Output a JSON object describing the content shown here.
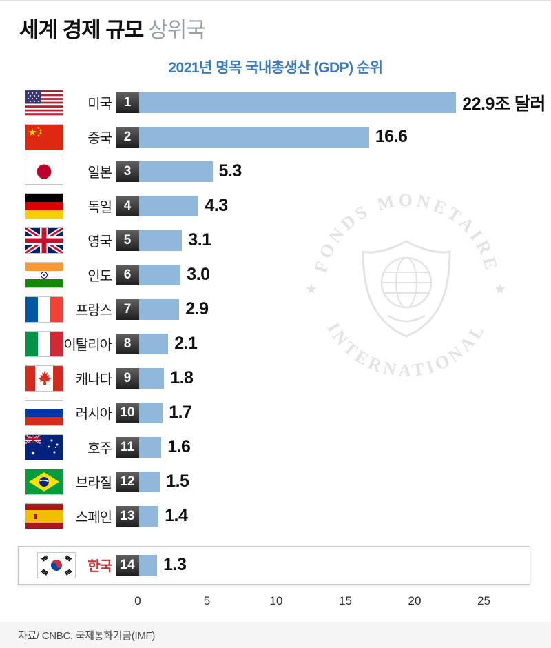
{
  "header": {
    "title_bold": "세계 경제 규모",
    "title_light": "상위국",
    "subtitle": "2021년 명목 국내총생산 (GDP) 순위"
  },
  "chart_data": {
    "type": "bar",
    "orientation": "horizontal",
    "title": "2021년 명목 국내총생산 (GDP) 순위",
    "unit": "조 달러",
    "xlim": [
      0,
      27
    ],
    "x_ticks": [
      0,
      5,
      10,
      15,
      20,
      25
    ],
    "bar_color": "#8fb8dc",
    "rank_badge_color": "#2d2d2d",
    "rows": [
      {
        "rank": "1",
        "country": "미국",
        "flag": "usa",
        "value": 22.9,
        "label": "22.9조 달러"
      },
      {
        "rank": "2",
        "country": "중국",
        "flag": "china",
        "value": 16.6,
        "label": "16.6"
      },
      {
        "rank": "3",
        "country": "일본",
        "flag": "japan",
        "value": 5.3,
        "label": "5.3"
      },
      {
        "rank": "4",
        "country": "독일",
        "flag": "germany",
        "value": 4.3,
        "label": "4.3"
      },
      {
        "rank": "5",
        "country": "영국",
        "flag": "uk",
        "value": 3.1,
        "label": "3.1"
      },
      {
        "rank": "6",
        "country": "인도",
        "flag": "india",
        "value": 3.0,
        "label": "3.0"
      },
      {
        "rank": "7",
        "country": "프랑스",
        "flag": "france",
        "value": 2.9,
        "label": "2.9"
      },
      {
        "rank": "8",
        "country": "이탈리아",
        "flag": "italy",
        "value": 2.1,
        "label": "2.1"
      },
      {
        "rank": "9",
        "country": "캐나다",
        "flag": "canada",
        "value": 1.8,
        "label": "1.8"
      },
      {
        "rank": "10",
        "country": "러시아",
        "flag": "russia",
        "value": 1.7,
        "label": "1.7"
      },
      {
        "rank": "11",
        "country": "호주",
        "flag": "australia",
        "value": 1.6,
        "label": "1.6"
      },
      {
        "rank": "12",
        "country": "브라질",
        "flag": "brazil",
        "value": 1.5,
        "label": "1.5"
      },
      {
        "rank": "13",
        "country": "스페인",
        "flag": "spain",
        "value": 1.4,
        "label": "1.4"
      },
      {
        "rank": "14",
        "country": "한국",
        "flag": "south-korea",
        "value": 1.3,
        "label": "1.3",
        "highlighted": true
      }
    ]
  },
  "watermark": {
    "name": "IMF emblem",
    "text_top": "FONDS MONETAIRE",
    "text_bottom": "INTERNATIONAL"
  },
  "footer": {
    "source": "자료/ CNBC, 국제통화기금(IMF)"
  }
}
